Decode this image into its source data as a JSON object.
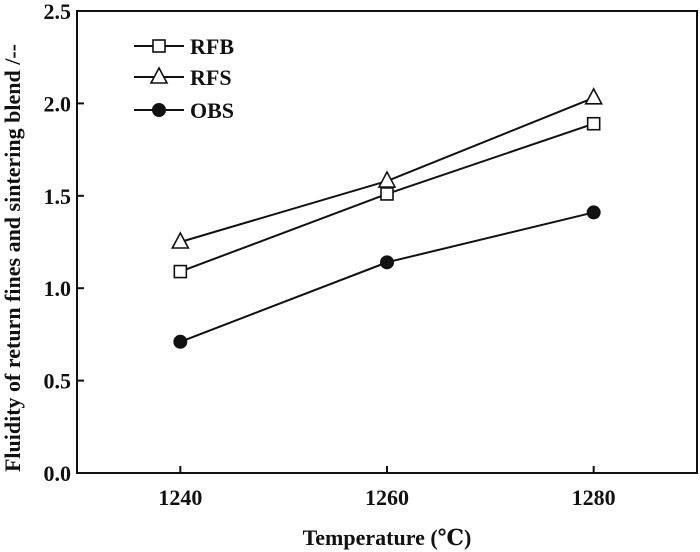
{
  "chart_data": {
    "type": "line",
    "title": "",
    "xlabel": "Temperature (℃)",
    "ylabel": "Fluidity of return fines and sintering blend /--",
    "xlim": [
      1230,
      1290
    ],
    "ylim": [
      0,
      2.5
    ],
    "x": [
      1240,
      1260,
      1280
    ],
    "xticks": [
      "1240",
      "1260",
      "1280"
    ],
    "yticks": [
      "0.0",
      "0.5",
      "1.0",
      "1.5",
      "2.0",
      "2.5"
    ],
    "grid": false,
    "legend_position": "top-left",
    "series": [
      {
        "name": "RFB",
        "marker": "open-square",
        "values": [
          1.09,
          1.51,
          1.89
        ]
      },
      {
        "name": "RFS",
        "marker": "open-triangle",
        "values": [
          1.25,
          1.58,
          2.03
        ]
      },
      {
        "name": "OBS",
        "marker": "filled-circle",
        "values": [
          0.71,
          1.14,
          1.41
        ]
      }
    ],
    "color": "#111111"
  }
}
